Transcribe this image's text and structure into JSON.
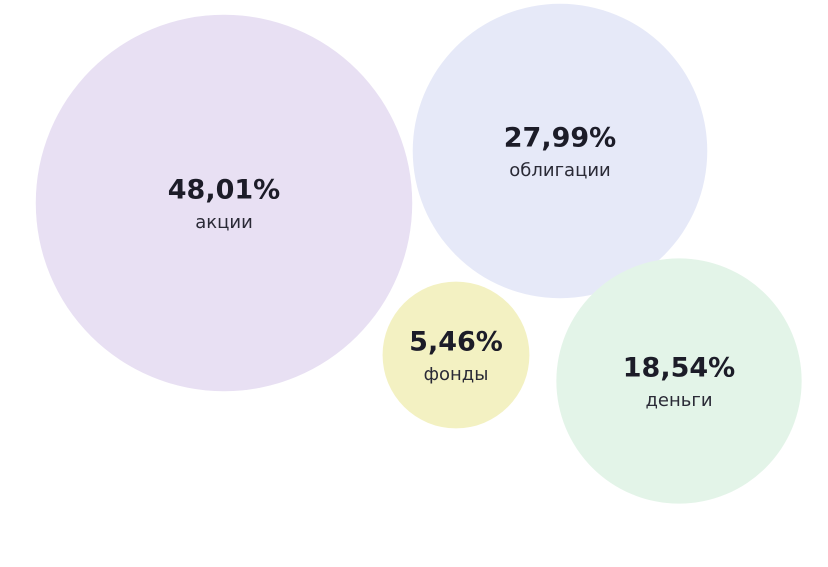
{
  "chart_data": {
    "type": "bubble",
    "categories": [
      "акции",
      "облигации",
      "фонды",
      "деньги"
    ],
    "values": [
      48.01,
      27.99,
      5.46,
      18.54
    ],
    "value_labels": [
      "48,01%",
      "27,99%",
      "5,46%",
      "18,54%"
    ],
    "colors": [
      "#e8e0f3",
      "#e6e9f8",
      "#f3f1c2",
      "#e3f4e8"
    ]
  }
}
